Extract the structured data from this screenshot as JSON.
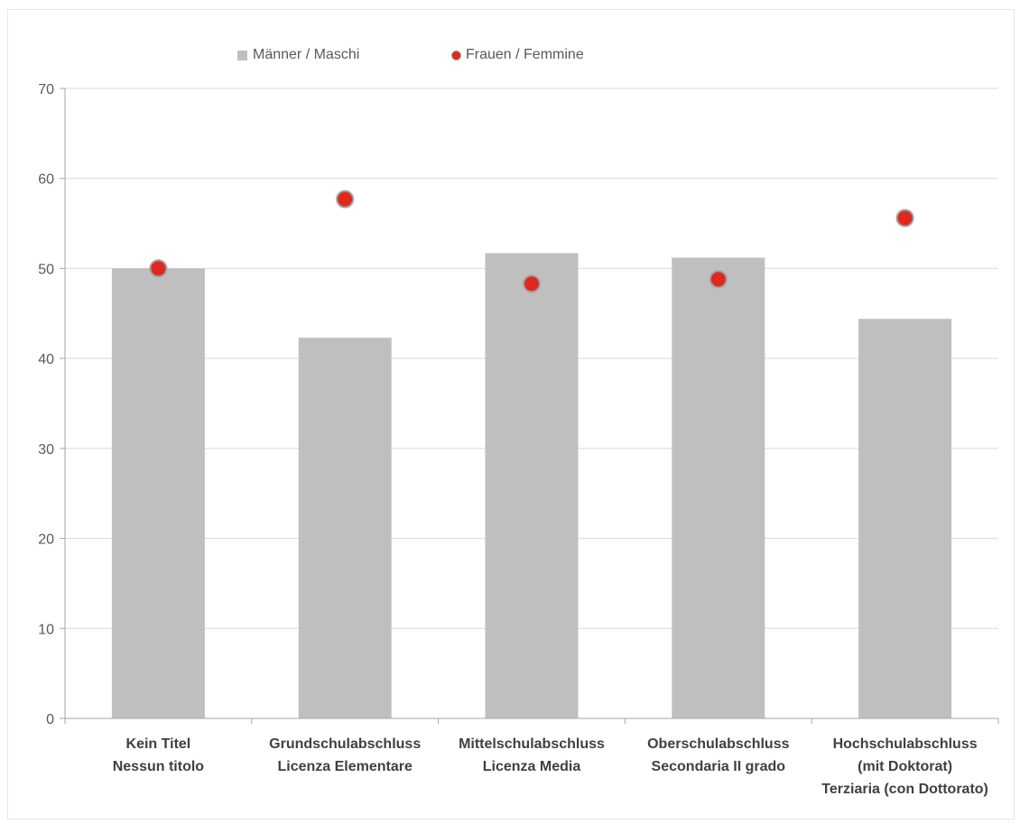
{
  "chart_data": {
    "type": "bar",
    "title": "",
    "xlabel": "",
    "ylabel": "",
    "ylim": [
      0,
      70
    ],
    "yticks": [
      0,
      10,
      20,
      30,
      40,
      50,
      60,
      70
    ],
    "grid": true,
    "legend_position": "top",
    "categories": [
      [
        "Kein Titel",
        "Nessun titolo"
      ],
      [
        "Grundschulabschluss",
        "Licenza Elementare"
      ],
      [
        "Mittelschulabschluss",
        "Licenza Media"
      ],
      [
        "Oberschulabschluss",
        "Secondaria II grado"
      ],
      [
        "Hochschulabschluss",
        "(mit Doktorat)",
        "Terziaria (con Dottorato)"
      ]
    ],
    "series": [
      {
        "name": "Männer / Maschi",
        "kind": "bar",
        "color": "#bfbfbf",
        "values": [
          50.0,
          42.3,
          51.7,
          51.2,
          44.4
        ]
      },
      {
        "name": "Frauen / Femmine",
        "kind": "dot",
        "color": "#e0281c",
        "values": [
          50.0,
          57.7,
          48.3,
          48.8,
          55.6
        ]
      }
    ]
  }
}
